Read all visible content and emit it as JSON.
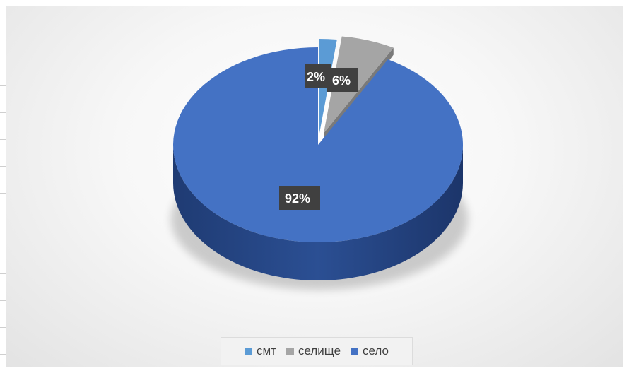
{
  "chart_data": {
    "type": "pie",
    "style": "3d-exploded",
    "categories": [
      "смт",
      "селище",
      "село"
    ],
    "values": [
      2,
      6,
      92
    ],
    "data_labels": [
      "2%",
      "6%",
      "92%"
    ],
    "colors": [
      "#5b9bd5",
      "#a5a5a5",
      "#4472c4"
    ],
    "legend": {
      "position": "bottom",
      "items": [
        {
          "label": "смт",
          "color": "#5b9bd5"
        },
        {
          "label": "селище",
          "color": "#a5a5a5"
        },
        {
          "label": "село",
          "color": "#4472c4"
        }
      ]
    },
    "title": ""
  }
}
